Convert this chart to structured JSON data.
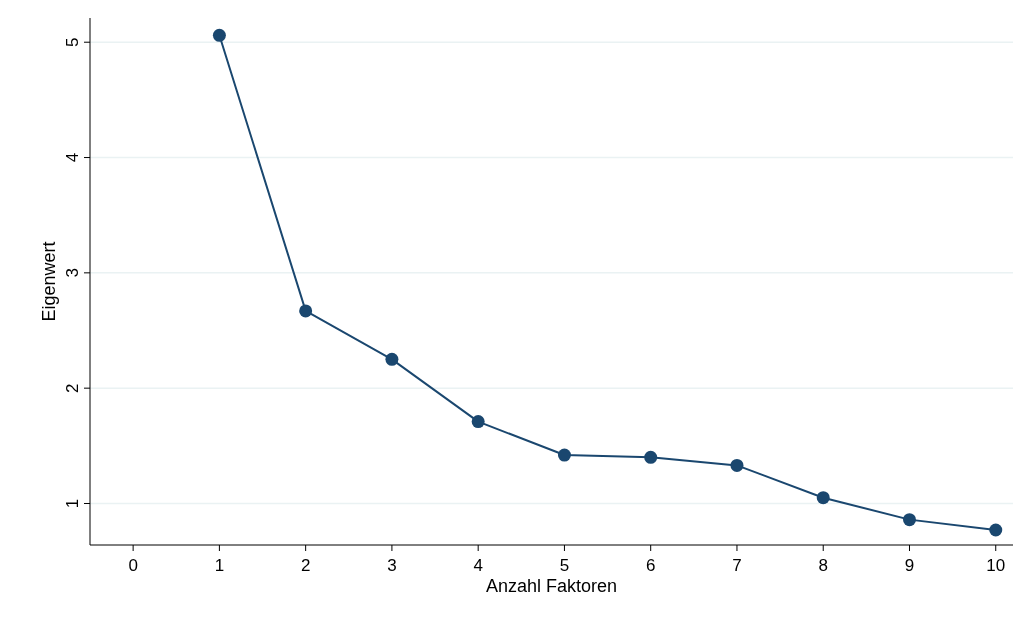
{
  "chart_data": {
    "type": "line",
    "xlabel": "Anzahl Faktoren",
    "ylabel": "Eigenwert",
    "x": [
      1,
      2,
      3,
      4,
      5,
      6,
      7,
      8,
      9,
      10
    ],
    "series": [
      {
        "color": "#1a476f",
        "values": [
          5.06,
          2.67,
          2.25,
          1.71,
          1.42,
          1.4,
          1.33,
          1.05,
          0.86,
          0.77
        ]
      }
    ],
    "xlim": [
      -0.5,
      10.2
    ],
    "xticks": [
      0,
      1,
      2,
      3,
      4,
      5,
      6,
      7,
      8,
      9,
      10
    ],
    "ylim": [
      0.64,
      5.21
    ],
    "yticks": [
      1,
      2,
      3,
      4,
      5
    ],
    "grid": "y",
    "marker": "circle",
    "line_style": "solid"
  }
}
